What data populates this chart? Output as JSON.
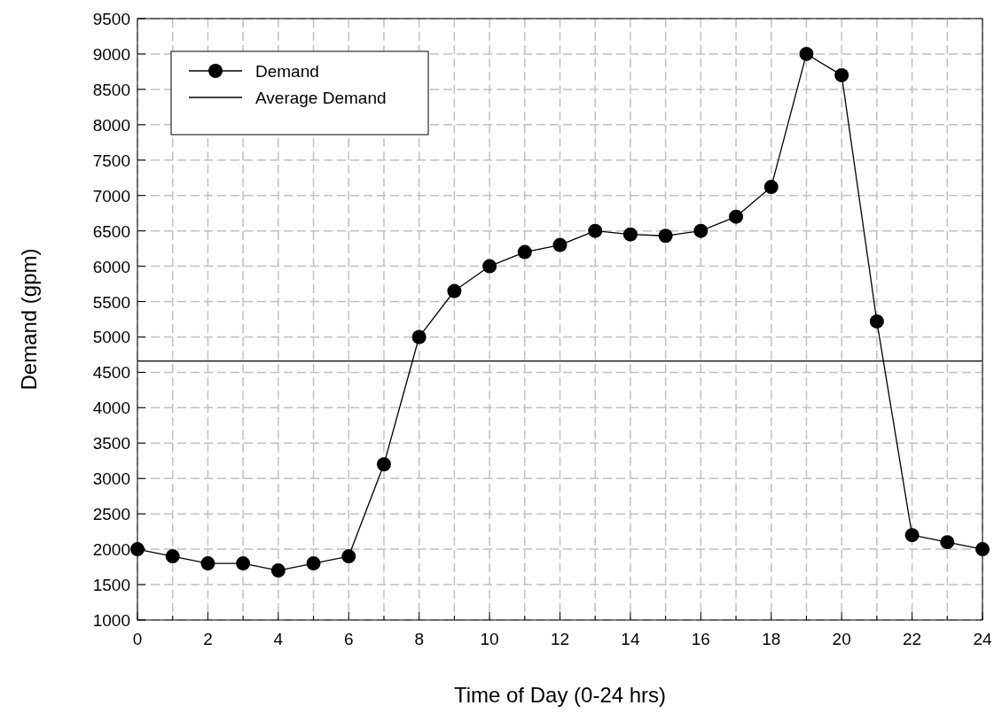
{
  "chart_data": {
    "type": "line",
    "xlabel": "Time of Day (0-24 hrs)",
    "ylabel": "Demand (gpm)",
    "xlim": [
      0,
      24
    ],
    "ylim": [
      1000,
      9500
    ],
    "xticks": [
      0,
      {
        "value": 1,
        "label": null
      },
      2,
      {
        "value": 3,
        "label": null
      },
      4,
      {
        "value": 5,
        "label": null
      },
      6,
      {
        "value": 7,
        "label": null
      },
      8,
      {
        "value": 9,
        "label": null
      },
      10,
      {
        "value": 11,
        "label": null
      },
      12,
      {
        "value": 13,
        "label": null
      },
      14,
      {
        "value": 15,
        "label": null
      },
      16,
      {
        "value": 17,
        "label": null
      },
      18,
      {
        "value": 19,
        "label": null
      },
      20,
      {
        "value": 21,
        "label": null
      },
      22,
      {
        "value": 23,
        "label": null
      },
      24
    ],
    "yticks": [
      1000,
      1500,
      2000,
      2500,
      3000,
      3500,
      4000,
      4500,
      5000,
      5500,
      6000,
      6500,
      7000,
      7500,
      8000,
      8500,
      9000,
      9500
    ],
    "grid": true,
    "legend": "top left",
    "series": [
      {
        "name": "Demand",
        "color": "#000000",
        "marker": "circle",
        "x": [
          0,
          1,
          2,
          3,
          4,
          5,
          6,
          7,
          8,
          9,
          10,
          11,
          12,
          13,
          14,
          15,
          16,
          17,
          18,
          19,
          20,
          21,
          22,
          23,
          24
        ],
        "values": [
          2000,
          1900,
          1800,
          1800,
          1700,
          1800,
          1900,
          3200,
          5000,
          5650,
          6000,
          6200,
          6300,
          6500,
          6450,
          6430,
          6500,
          6700,
          7120,
          9000,
          8700,
          5220,
          2200,
          2100,
          2000
        ]
      },
      {
        "name": "Average Demand",
        "color": "#000000",
        "marker": "none",
        "x": [
          0,
          24
        ],
        "values": [
          4660,
          4660
        ]
      }
    ]
  }
}
